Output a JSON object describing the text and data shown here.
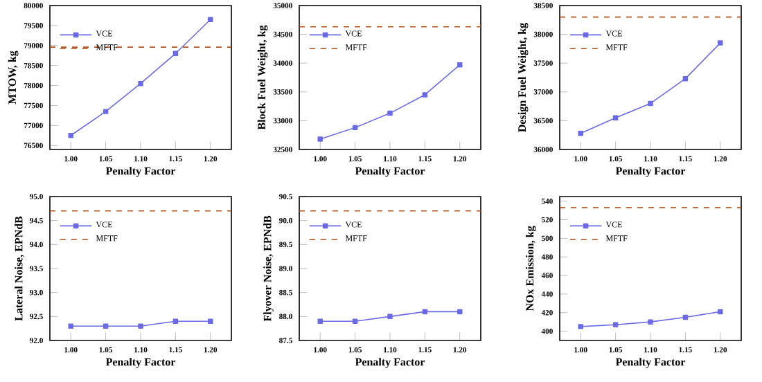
{
  "chart_data": [
    {
      "type": "line",
      "xlabel": "Penalty Factor",
      "ylabel": "MTOW, kg",
      "x": [
        1.0,
        1.05,
        1.1,
        1.15,
        1.2
      ],
      "xlim": [
        0.97,
        1.23
      ],
      "xticks": [
        {
          "value": 1.0,
          "label": "1.00"
        },
        {
          "value": 1.05,
          "label": "1.05"
        },
        {
          "value": 1.1,
          "label": "1.10"
        },
        {
          "value": 1.15,
          "label": "1.15"
        },
        {
          "value": 1.2,
          "label": "1.20"
        }
      ],
      "ylim": [
        76400,
        80000
      ],
      "yticks": [
        76500,
        77000,
        77500,
        78000,
        78500,
        79000,
        79500,
        80000
      ],
      "series": [
        {
          "name": "VCE",
          "color": "#6a6ae6",
          "values": [
            76750,
            77350,
            78050,
            78800,
            79650
          ]
        }
      ],
      "ref_lines": [
        {
          "axis": "y",
          "value": 78960,
          "label": "MFTF",
          "color": "#b0501a",
          "line_style": "dashed"
        }
      ],
      "legend": "top left",
      "marker": "square",
      "line_style": "solid"
    },
    {
      "type": "line",
      "xlabel": "Penalty Factor",
      "ylabel": "Block Fuel Weight, kg",
      "x": [
        1.0,
        1.05,
        1.1,
        1.15,
        1.2
      ],
      "xlim": [
        0.97,
        1.23
      ],
      "xticks": [
        {
          "value": 1.0,
          "label": "1.00"
        },
        {
          "value": 1.05,
          "label": "1.05"
        },
        {
          "value": 1.1,
          "label": "1.10"
        },
        {
          "value": 1.15,
          "label": "1.15"
        },
        {
          "value": 1.2,
          "label": "1.20"
        }
      ],
      "ylim": [
        32500,
        35000
      ],
      "yticks": [
        32500,
        33000,
        33500,
        34000,
        34500,
        35000
      ],
      "series": [
        {
          "name": "VCE",
          "color": "#6a6ae6",
          "values": [
            32680,
            32880,
            33130,
            33450,
            33970
          ]
        }
      ],
      "ref_lines": [
        {
          "axis": "y",
          "value": 34630,
          "label": "MFTF",
          "color": "#b0501a",
          "line_style": "dashed"
        }
      ],
      "legend": "top left",
      "marker": "square",
      "line_style": "solid"
    },
    {
      "type": "line",
      "xlabel": "Penalty Factor",
      "ylabel": "Design Fuel Weight, kg",
      "x": [
        1.0,
        1.05,
        1.1,
        1.15,
        1.2
      ],
      "xlim": [
        0.97,
        1.23
      ],
      "xticks": [
        {
          "value": 1.0,
          "label": "1.00"
        },
        {
          "value": 1.05,
          "label": "1.05"
        },
        {
          "value": 1.1,
          "label": "1.10"
        },
        {
          "value": 1.15,
          "label": "1.15"
        },
        {
          "value": 1.2,
          "label": "1.20"
        }
      ],
      "ylim": [
        36000,
        38500
      ],
      "yticks": [
        36000,
        36500,
        37000,
        37500,
        38000,
        38500
      ],
      "series": [
        {
          "name": "VCE",
          "color": "#6a6ae6",
          "values": [
            36280,
            36550,
            36800,
            37230,
            37850
          ]
        }
      ],
      "ref_lines": [
        {
          "axis": "y",
          "value": 38300,
          "label": "MFTF",
          "color": "#b0501a",
          "line_style": "dashed"
        }
      ],
      "legend": "top left",
      "marker": "square",
      "line_style": "solid"
    },
    {
      "type": "line",
      "xlabel": "Penalty Factor",
      "ylabel": "Lateral Noise, EPNdB",
      "x": [
        1.0,
        1.05,
        1.1,
        1.15,
        1.2
      ],
      "xlim": [
        0.97,
        1.23
      ],
      "xticks": [
        {
          "value": 1.0,
          "label": "1.00"
        },
        {
          "value": 1.05,
          "label": "1.05"
        },
        {
          "value": 1.1,
          "label": "1.10"
        },
        {
          "value": 1.15,
          "label": "1.15"
        },
        {
          "value": 1.2,
          "label": "1.20"
        }
      ],
      "ylim": [
        92.0,
        95.0
      ],
      "yticks": [
        {
          "value": 92.0,
          "label": "92.0"
        },
        92.5,
        {
          "value": 93.0,
          "label": "93.0"
        },
        93.5,
        {
          "value": 94.0,
          "label": "94.0"
        },
        94.5,
        {
          "value": 95.0,
          "label": "95.0"
        }
      ],
      "series": [
        {
          "name": "VCE",
          "color": "#6a6ae6",
          "values": [
            92.3,
            92.3,
            92.3,
            92.4,
            92.4
          ]
        }
      ],
      "ref_lines": [
        {
          "axis": "y",
          "value": 94.7,
          "label": "MFTF",
          "color": "#b0501a",
          "line_style": "dashed"
        }
      ],
      "legend": "top left",
      "marker": "square",
      "line_style": "solid"
    },
    {
      "type": "line",
      "xlabel": "Penalty Factor",
      "ylabel": "Flyover Noise, EPNdB",
      "x": [
        1.0,
        1.05,
        1.1,
        1.15,
        1.2
      ],
      "xlim": [
        0.97,
        1.23
      ],
      "xticks": [
        {
          "value": 1.0,
          "label": "1.00"
        },
        {
          "value": 1.05,
          "label": "1.05"
        },
        {
          "value": 1.1,
          "label": "1.10"
        },
        {
          "value": 1.15,
          "label": "1.15"
        },
        {
          "value": 1.2,
          "label": "1.20"
        }
      ],
      "ylim": [
        87.5,
        90.5
      ],
      "yticks": [
        87.5,
        {
          "value": 88.0,
          "label": "88.0"
        },
        88.5,
        {
          "value": 89.0,
          "label": "89.0"
        },
        89.5,
        {
          "value": 90.0,
          "label": "90.0"
        },
        90.5
      ],
      "series": [
        {
          "name": "VCE",
          "color": "#6a6ae6",
          "values": [
            87.9,
            87.9,
            88.0,
            88.1,
            88.1
          ]
        }
      ],
      "ref_lines": [
        {
          "axis": "y",
          "value": 90.2,
          "label": "MFTF",
          "color": "#b0501a",
          "line_style": "dashed"
        }
      ],
      "legend": "top left",
      "marker": "square",
      "line_style": "solid"
    },
    {
      "type": "line",
      "xlabel": "Penalty Factor",
      "ylabel": "NOx Emission, kg",
      "x": [
        1.0,
        1.05,
        1.1,
        1.15,
        1.2
      ],
      "xlim": [
        0.97,
        1.23
      ],
      "xticks": [
        {
          "value": 1.0,
          "label": "1.00"
        },
        {
          "value": 1.05,
          "label": "1.05"
        },
        {
          "value": 1.1,
          "label": "1.10"
        },
        {
          "value": 1.15,
          "label": "1.15"
        },
        {
          "value": 1.2,
          "label": "1.20"
        }
      ],
      "ylim": [
        390,
        545
      ],
      "yticks": [
        400,
        420,
        440,
        460,
        480,
        500,
        520,
        540
      ],
      "series": [
        {
          "name": "VCE",
          "color": "#6a6ae6",
          "values": [
            405,
            407,
            410,
            415,
            421
          ]
        }
      ],
      "ref_lines": [
        {
          "axis": "y",
          "value": 533,
          "label": "MFTF",
          "color": "#b0501a",
          "line_style": "dashed"
        }
      ],
      "legend": "top left",
      "marker": "square",
      "line_style": "solid"
    }
  ]
}
